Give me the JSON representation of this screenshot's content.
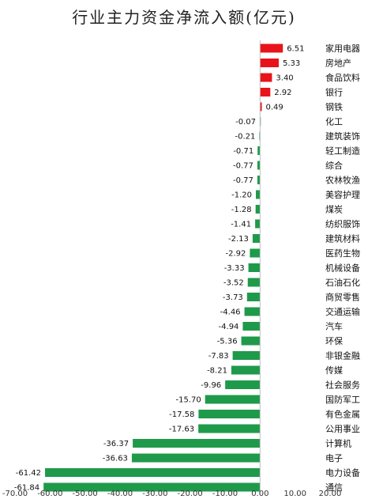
{
  "chart_data": {
    "type": "bar",
    "orientation": "horizontal",
    "title": "行业主力资金净流入额(亿元)",
    "xlim": [
      -70,
      20
    ],
    "xticks": [
      "-70.00",
      "-60.00",
      "-50.00",
      "-40.00",
      "-30.00",
      "-20.00",
      "-10.00",
      "0.00",
      "10.00",
      "20.00"
    ],
    "colors": {
      "positive": "#e8141a",
      "negative": "#1f9a4a"
    },
    "categories": [
      "家用电器",
      "房地产",
      "食品饮料",
      "银行",
      "钢铁",
      "化工",
      "建筑装饰",
      "轻工制造",
      "综合",
      "农林牧渔",
      "美容护理",
      "煤炭",
      "纺织服饰",
      "建筑材料",
      "医药生物",
      "机械设备",
      "石油石化",
      "商贸零售",
      "交通运输",
      "汽车",
      "环保",
      "非银金融",
      "传媒",
      "社会服务",
      "国防军工",
      "有色金属",
      "公用事业",
      "计算机",
      "电子",
      "电力设备",
      "通信"
    ],
    "values": [
      6.51,
      5.33,
      3.4,
      2.92,
      0.49,
      -0.07,
      -0.21,
      -0.71,
      -0.77,
      -0.77,
      -1.2,
      -1.28,
      -1.41,
      -2.13,
      -2.92,
      -3.33,
      -3.52,
      -3.73,
      -4.46,
      -4.94,
      -5.36,
      -7.83,
      -8.21,
      -9.96,
      -15.7,
      -17.58,
      -17.63,
      -36.37,
      -36.63,
      -61.42,
      -61.84
    ],
    "value_labels": [
      "6.51",
      "5.33",
      "3.40",
      "2.92",
      "0.49",
      "-0.07",
      "-0.21",
      "-0.71",
      "-0.77",
      "-0.77",
      "-1.20",
      "-1.28",
      "-1.41",
      "-2.13",
      "-2.92",
      "-3.33",
      "-3.52",
      "-3.73",
      "-4.46",
      "-4.94",
      "-5.36",
      "-7.83",
      "-8.21",
      "-9.96",
      "-15.70",
      "-17.58",
      "-17.63",
      "-36.37",
      "-36.63",
      "-61.42",
      "-61.84"
    ]
  }
}
